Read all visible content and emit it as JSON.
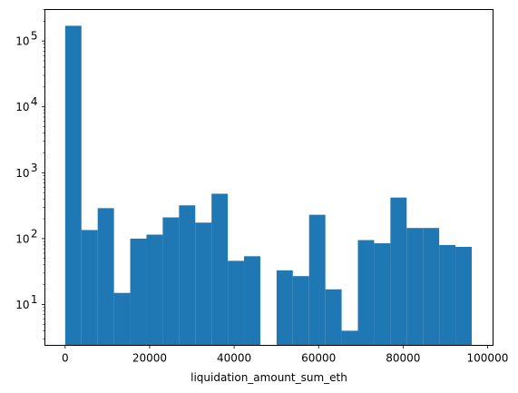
{
  "chart_data": {
    "type": "bar",
    "subtype": "histogram",
    "title": "",
    "xlabel": "liquidation_amount_sum_eth",
    "ylabel": "",
    "yscale": "log",
    "xlim": [
      -4800,
      101300
    ],
    "ylim": [
      2.4,
      300000
    ],
    "grid": false,
    "color": "#1f77b4",
    "x_ticks": [
      0,
      20000,
      40000,
      60000,
      80000,
      100000
    ],
    "x_tick_labels": [
      "0",
      "20000",
      "40000",
      "60000",
      "80000",
      "100000"
    ],
    "y_ticks": [
      {
        "value": 10,
        "base": "10",
        "exp": "1"
      },
      {
        "value": 100,
        "base": "10",
        "exp": "2"
      },
      {
        "value": 1000,
        "base": "10",
        "exp": "3"
      },
      {
        "value": 10000,
        "base": "10",
        "exp": "4"
      },
      {
        "value": 100000,
        "base": "10",
        "exp": "5"
      }
    ],
    "bin_start": 0,
    "bin_width": 3850,
    "values": [
      170000,
      135,
      290,
      15,
      100,
      115,
      210,
      320,
      175,
      480,
      46,
      54,
      0,
      33,
      27,
      230,
      17,
      4,
      95,
      85,
      420,
      145,
      145,
      80,
      75
    ]
  }
}
